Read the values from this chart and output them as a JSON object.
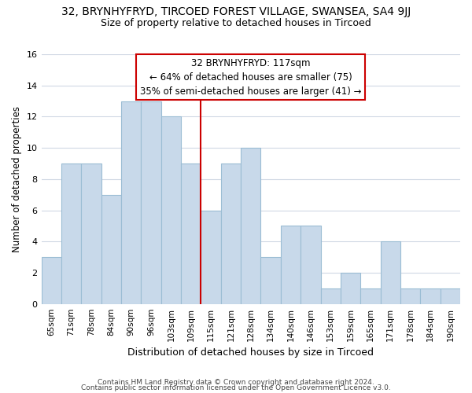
{
  "title1": "32, BRYNHYFRYD, TIRCOED FOREST VILLAGE, SWANSEA, SA4 9JJ",
  "title2": "Size of property relative to detached houses in Tircoed",
  "xlabel": "Distribution of detached houses by size in Tircoed",
  "ylabel": "Number of detached properties",
  "footer1": "Contains HM Land Registry data © Crown copyright and database right 2024.",
  "footer2": "Contains public sector information licensed under the Open Government Licence v3.0.",
  "bin_labels": [
    "65sqm",
    "71sqm",
    "78sqm",
    "84sqm",
    "90sqm",
    "96sqm",
    "103sqm",
    "109sqm",
    "115sqm",
    "121sqm",
    "128sqm",
    "134sqm",
    "140sqm",
    "146sqm",
    "153sqm",
    "159sqm",
    "165sqm",
    "171sqm",
    "178sqm",
    "184sqm",
    "190sqm"
  ],
  "bar_values": [
    3,
    9,
    9,
    7,
    13,
    13,
    12,
    9,
    6,
    9,
    10,
    3,
    5,
    5,
    1,
    2,
    1,
    4,
    1,
    1,
    1
  ],
  "bar_color": "#c8d9ea",
  "bar_edge_color": "#9bbdd4",
  "ref_line_color": "#cc0000",
  "annotation_title": "32 BRYNHYFRYD: 117sqm",
  "annotation_line1": "← 64% of detached houses are smaller (75)",
  "annotation_line2": "35% of semi-detached houses are larger (41) →",
  "annotation_box_edge": "#cc0000",
  "ylim": [
    0,
    16
  ],
  "yticks": [
    0,
    2,
    4,
    6,
    8,
    10,
    12,
    14,
    16
  ],
  "background_color": "#ffffff",
  "grid_color": "#d0d8e4",
  "title_fontsize": 10,
  "subtitle_fontsize": 9
}
